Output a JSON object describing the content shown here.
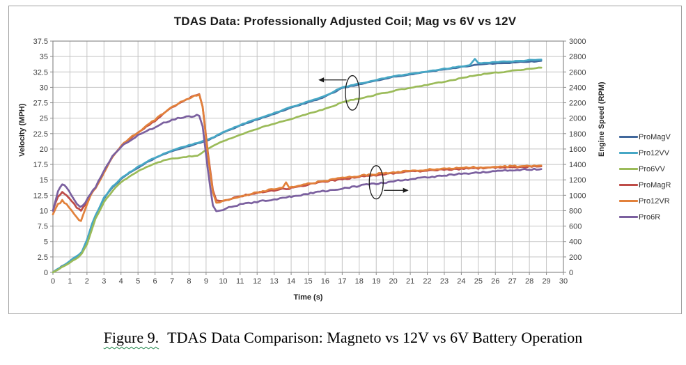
{
  "caption": {
    "label": "Figure 9.",
    "text": "TDAS Data Comparison: Magneto vs 12V vs 6V Battery Operation"
  },
  "colors": {
    "grid": "#c4c4c4",
    "axis": "#8c8c8c",
    "frame_border": "#9e9e9e",
    "tick_text": "#3f3f3f",
    "annotation": "#1a1a1a"
  },
  "chart_data": {
    "type": "line",
    "title": "TDAS Data: Professionally Adjusted Coil; Mag vs 6V vs 12V",
    "xlabel": "Time (s)",
    "ylabel_left": "Velocity (MPH)",
    "ylabel_right": "Engine Speed (RPM)",
    "x_range": [
      0,
      30
    ],
    "y_left_range": [
      0,
      37.5
    ],
    "y_right_range": [
      0,
      3000
    ],
    "x_ticks": [
      0,
      1,
      2,
      3,
      4,
      5,
      6,
      7,
      8,
      9,
      10,
      11,
      12,
      13,
      14,
      15,
      16,
      17,
      18,
      19,
      20,
      21,
      22,
      23,
      24,
      25,
      26,
      27,
      28,
      29,
      30
    ],
    "y_left_ticks": [
      0,
      2.5,
      5,
      7.5,
      10,
      12.5,
      15,
      17.5,
      20,
      22.5,
      25,
      27.5,
      30,
      32.5,
      35,
      37.5
    ],
    "y_right_ticks": [
      0,
      200,
      400,
      600,
      800,
      1000,
      1200,
      1400,
      1600,
      1800,
      2000,
      2200,
      2400,
      2600,
      2800,
      3000
    ],
    "grid": true,
    "legend_position": "right",
    "series": [
      {
        "name": "ProMagV",
        "color": "#41689C",
        "axis": "left",
        "unit": "MPH",
        "noise_amp": 0.06,
        "x": [
          0,
          0.5,
          1,
          1.5,
          1.7,
          2,
          2.3,
          2.5,
          3,
          3.5,
          4,
          4.5,
          5,
          5.5,
          6,
          6.5,
          7,
          7.5,
          8,
          8.5,
          9,
          9.5,
          10,
          10.5,
          11,
          11.5,
          12,
          12.5,
          13,
          13.5,
          14,
          14.5,
          15,
          15.5,
          16,
          16.5,
          17,
          17.5,
          18,
          18.5,
          19,
          19.5,
          20,
          20.5,
          21,
          21.5,
          22,
          22.5,
          23,
          23.5,
          24,
          24.5,
          24.8,
          25,
          25.5,
          26,
          26.5,
          27,
          27.5,
          28,
          28.4,
          28.7
        ],
        "y": [
          0,
          0.9,
          1.8,
          2.8,
          3.2,
          5.2,
          7.8,
          9.1,
          12.0,
          13.8,
          15.1,
          16.1,
          17.0,
          17.8,
          18.5,
          19.1,
          19.7,
          20.1,
          20.5,
          20.9,
          21.3,
          21.9,
          22.7,
          23.2,
          23.8,
          24.3,
          24.8,
          25.2,
          25.7,
          26.2,
          26.7,
          27.1,
          27.6,
          28.0,
          28.5,
          29.2,
          29.9,
          30.2,
          30.5,
          30.8,
          31.1,
          31.4,
          31.7,
          31.9,
          32.1,
          32.3,
          32.5,
          32.7,
          32.9,
          33.1,
          33.3,
          33.5,
          33.6,
          33.7,
          33.8,
          33.9,
          33.9,
          34.0,
          34.1,
          34.2,
          34.2,
          34.3
        ]
      },
      {
        "name": "Pro12VV",
        "color": "#46A7C5",
        "axis": "left",
        "unit": "MPH",
        "noise_amp": 0.06,
        "x": [
          0,
          0.5,
          1,
          1.5,
          1.7,
          2,
          2.3,
          2.5,
          3,
          3.5,
          4,
          4.5,
          5,
          5.5,
          6,
          6.5,
          7,
          7.5,
          8,
          8.5,
          9,
          9.5,
          10,
          10.5,
          11,
          11.5,
          12,
          12.5,
          13,
          13.5,
          14,
          14.5,
          15,
          15.5,
          16,
          16.5,
          17,
          17.5,
          18,
          18.5,
          19,
          19.5,
          20,
          20.5,
          21,
          21.5,
          22,
          22.5,
          23,
          23.5,
          24,
          24.5,
          24.8,
          25,
          25.5,
          26,
          26.5,
          27,
          27.5,
          28,
          28.4,
          28.7
        ],
        "y": [
          0,
          0.9,
          1.85,
          2.85,
          3.25,
          5.3,
          7.9,
          9.2,
          12.1,
          13.9,
          15.2,
          16.2,
          17.1,
          17.9,
          18.6,
          19.2,
          19.8,
          20.2,
          20.6,
          21.0,
          21.4,
          22.0,
          22.8,
          23.3,
          23.9,
          24.4,
          24.9,
          25.3,
          25.8,
          26.3,
          26.8,
          27.2,
          27.7,
          28.1,
          28.6,
          29.3,
          30.0,
          30.3,
          30.6,
          30.9,
          31.2,
          31.5,
          31.8,
          32.0,
          32.2,
          32.4,
          32.6,
          32.8,
          33.0,
          33.2,
          33.4,
          33.6,
          34.6,
          33.9,
          34.0,
          34.1,
          34.2,
          34.2,
          34.3,
          34.4,
          34.4,
          34.5
        ]
      },
      {
        "name": "Pro6VV",
        "color": "#9BBB59",
        "axis": "left",
        "unit": "MPH",
        "noise_amp": 0.07,
        "x": [
          0,
          0.5,
          1,
          1.5,
          1.7,
          2,
          2.3,
          2.5,
          3,
          3.5,
          4,
          4.5,
          5,
          5.5,
          6,
          6.5,
          7,
          7.5,
          8,
          8.5,
          9,
          9.5,
          10,
          10.5,
          11,
          11.5,
          12,
          12.5,
          13,
          13.5,
          14,
          14.5,
          15,
          15.5,
          16,
          16.5,
          17,
          17.5,
          18,
          18.5,
          19,
          19.5,
          20,
          20.5,
          21,
          21.5,
          22,
          22.5,
          23,
          23.5,
          24,
          24.5,
          24.8,
          25,
          25.5,
          26,
          26.5,
          27,
          27.5,
          28,
          28.4,
          28.7
        ],
        "y": [
          0,
          0.8,
          1.6,
          2.5,
          3.0,
          4.6,
          7.0,
          8.7,
          11.4,
          13.2,
          14.6,
          15.6,
          16.4,
          17.1,
          17.7,
          18.1,
          18.4,
          18.6,
          18.8,
          18.9,
          19.9,
          20.6,
          21.3,
          21.8,
          22.3,
          22.8,
          23.2,
          23.7,
          24.1,
          24.5,
          24.9,
          25.3,
          25.7,
          26.1,
          26.5,
          27.0,
          27.6,
          27.9,
          28.2,
          28.5,
          28.8,
          29.1,
          29.4,
          29.7,
          29.9,
          30.2,
          30.4,
          30.7,
          30.9,
          31.2,
          31.5,
          31.8,
          31.9,
          32.0,
          32.2,
          32.4,
          32.5,
          32.7,
          32.8,
          33.0,
          33.1,
          33.2
        ]
      },
      {
        "name": "ProMagR",
        "color": "#BE4C48",
        "axis": "right",
        "unit": "RPM",
        "noise_amp": 9,
        "x": [
          0,
          0.3,
          0.55,
          0.8,
          1.1,
          1.4,
          1.65,
          1.9,
          2.2,
          2.5,
          3,
          3.5,
          4,
          4.5,
          5,
          5.5,
          6,
          6.5,
          7,
          7.5,
          8,
          8.3,
          8.6,
          8.8,
          9.1,
          9.4,
          9.6,
          9.8,
          10,
          10.5,
          11,
          11.5,
          12,
          12.5,
          13,
          13.5,
          13.7,
          13.9,
          14,
          15,
          16,
          17,
          18,
          19,
          20,
          21,
          22,
          23,
          24,
          25,
          26,
          27,
          28,
          28.7
        ],
        "y": [
          800,
          985,
          1040,
          1005,
          930,
          840,
          800,
          880,
          1010,
          1105,
          1300,
          1500,
          1630,
          1730,
          1810,
          1890,
          1970,
          2060,
          2140,
          2200,
          2255,
          2290,
          2310,
          2150,
          1560,
          1060,
          930,
          925,
          935,
          960,
          985,
          1010,
          1030,
          1050,
          1065,
          1080,
          1085,
          1090,
          1095,
          1140,
          1175,
          1210,
          1240,
          1262,
          1285,
          1305,
          1320,
          1332,
          1342,
          1352,
          1358,
          1364,
          1370,
          1375
        ]
      },
      {
        "name": "Pro12VR",
        "color": "#E2813B",
        "axis": "right",
        "unit": "RPM",
        "noise_amp": 10,
        "x": [
          0,
          0.3,
          0.55,
          0.8,
          1.1,
          1.4,
          1.65,
          1.9,
          2.2,
          2.5,
          3,
          3.5,
          4,
          4.5,
          5,
          5.5,
          6,
          6.5,
          7,
          7.5,
          8,
          8.3,
          8.6,
          8.8,
          9.1,
          9.4,
          9.6,
          9.8,
          10,
          10.5,
          11,
          11.5,
          12,
          12.5,
          13,
          13.5,
          13.7,
          13.9,
          14,
          15,
          16,
          17,
          18,
          19,
          20,
          21,
          22,
          23,
          24,
          25,
          26,
          27,
          28,
          28.7
        ],
        "y": [
          752,
          880,
          930,
          885,
          795,
          705,
          665,
          820,
          1000,
          1095,
          1295,
          1505,
          1637,
          1737,
          1817,
          1897,
          1982,
          2067,
          2147,
          2207,
          2262,
          2288,
          2300,
          2140,
          1545,
          1045,
          905,
          910,
          925,
          955,
          985,
          1012,
          1035,
          1058,
          1078,
          1098,
          1170,
          1100,
          1105,
          1150,
          1187,
          1222,
          1252,
          1275,
          1297,
          1317,
          1332,
          1344,
          1355,
          1363,
          1370,
          1375,
          1380,
          1385
        ]
      },
      {
        "name": "Pro6R",
        "color": "#7B609F",
        "axis": "right",
        "unit": "RPM",
        "noise_amp": 10,
        "x": [
          0,
          0.3,
          0.55,
          0.8,
          1.1,
          1.4,
          1.6,
          1.9,
          2.2,
          2.5,
          3,
          3.5,
          4,
          4.5,
          5,
          5.5,
          6,
          6.5,
          7,
          7.5,
          8,
          8.3,
          8.6,
          8.8,
          9.1,
          9.4,
          9.6,
          9.8,
          10,
          10.5,
          11,
          11.5,
          12,
          12.5,
          13,
          13.5,
          13.7,
          13.9,
          14,
          15,
          16,
          17,
          18,
          19,
          20,
          21,
          22,
          23,
          24,
          25,
          26,
          27,
          28,
          28.7
        ],
        "y": [
          800,
          1060,
          1145,
          1105,
          995,
          890,
          845,
          905,
          1020,
          1110,
          1310,
          1505,
          1625,
          1710,
          1780,
          1835,
          1885,
          1935,
          1980,
          2005,
          2020,
          2032,
          2040,
          1900,
          1350,
          860,
          795,
          800,
          815,
          850,
          880,
          900,
          915,
          932,
          950,
          965,
          970,
          978,
          982,
          1020,
          1055,
          1090,
          1122,
          1152,
          1180,
          1208,
          1233,
          1257,
          1278,
          1298,
          1313,
          1325,
          1335,
          1340
        ]
      }
    ],
    "annotations": [
      {
        "shape": "ellipse-arrow",
        "ellipse": {
          "cx_s": 17.6,
          "cy_mph": 29.1,
          "rx_s": 0.41,
          "ry_mph": 2.8
        },
        "arrow": {
          "y_mph": 31.2,
          "from_s": 17.25,
          "to_s": 15.6,
          "direction": "left"
        }
      },
      {
        "shape": "ellipse-arrow",
        "ellipse": {
          "cx_s": 19.0,
          "cy_mph": 14.6,
          "rx_s": 0.41,
          "ry_mph": 2.7
        },
        "arrow": {
          "y_mph": 13.3,
          "from_s": 19.45,
          "to_s": 20.9,
          "direction": "right"
        }
      }
    ]
  }
}
